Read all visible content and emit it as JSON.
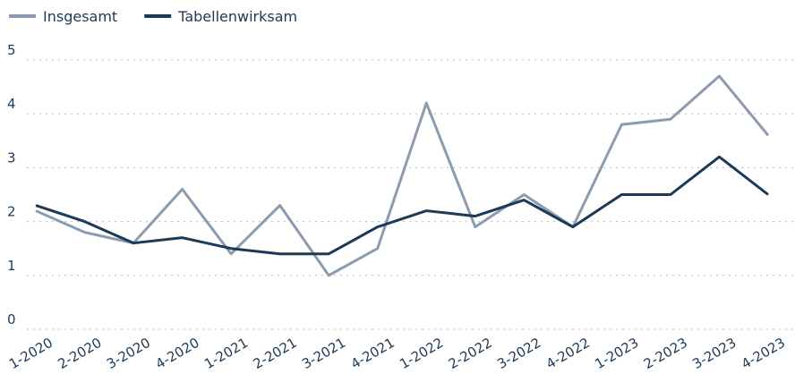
{
  "chart_data": {
    "type": "line",
    "categories": [
      "1-2020",
      "2-2020",
      "3-2020",
      "4-2020",
      "1-2021",
      "2-2021",
      "3-2021",
      "4-2021",
      "1-2022",
      "2-2022",
      "3-2022",
      "4-2022",
      "1-2023",
      "2-2023",
      "3-2023",
      "4-2023"
    ],
    "series": [
      {
        "name": "Insgesamt",
        "color": "#8b9bb0",
        "values": [
          2.2,
          1.8,
          1.6,
          2.6,
          1.4,
          2.3,
          1.0,
          1.5,
          4.2,
          1.9,
          2.5,
          1.9,
          3.8,
          3.9,
          4.7,
          3.6
        ]
      },
      {
        "name": "Tabellenwirksam",
        "color": "#1b3a57",
        "values": [
          2.3,
          2.0,
          1.6,
          1.7,
          1.5,
          1.4,
          1.4,
          1.9,
          2.2,
          2.1,
          2.4,
          1.9,
          2.5,
          2.5,
          3.2,
          2.5
        ]
      }
    ],
    "ylim": [
      0,
      5
    ],
    "yticks": [
      0,
      1,
      2,
      3,
      4,
      5
    ],
    "grid": true,
    "legend": "top-left"
  }
}
